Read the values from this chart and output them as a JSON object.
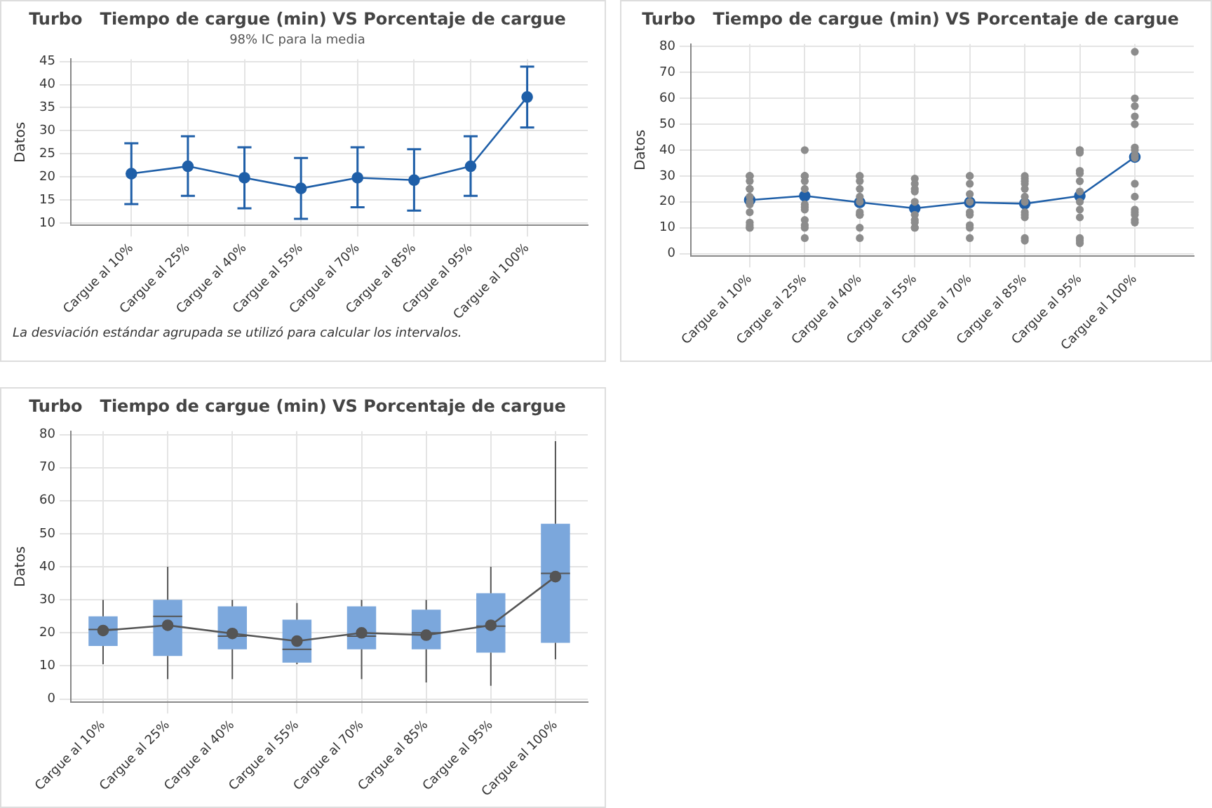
{
  "chart_data": [
    {
      "type": "line",
      "title": "Turbo   Tiempo de cargue (min) VS Porcentaje de cargue",
      "subtitle": "98% IC para la media",
      "ylabel": "Datos",
      "categories": [
        "Cargue al 10%",
        "Cargue al 25%",
        "Cargue al 40%",
        "Cargue al 55%",
        "Cargue al 70%",
        "Cargue al 85%",
        "Cargue al 95%",
        "Cargue al 100%"
      ],
      "color": "#1f5fa8",
      "marker": "circle",
      "values": [
        20.7,
        22.3,
        19.8,
        17.5,
        19.8,
        19.3,
        22.3,
        37.3
      ],
      "errors": [
        [
          14.1,
          27.3
        ],
        [
          15.9,
          28.8
        ],
        [
          13.2,
          26.4
        ],
        [
          10.9,
          24.1
        ],
        [
          13.4,
          26.4
        ],
        [
          12.7,
          26.0
        ],
        [
          15.9,
          28.8
        ],
        [
          30.7,
          43.9
        ]
      ],
      "ylim": [
        9.5,
        45.5
      ],
      "yticks": [
        10,
        15,
        20,
        25,
        30,
        35,
        40,
        45
      ],
      "grid": true,
      "annotations": [
        "La desviación estándar agrupada se utilizó para calcular los intervalos."
      ]
    },
    {
      "type": "scatter",
      "title": "Turbo   Tiempo de cargue (min) VS Porcentaje de cargue",
      "ylabel": "Datos",
      "categories": [
        "Cargue al 10%",
        "Cargue al 25%",
        "Cargue al 40%",
        "Cargue al 55%",
        "Cargue al 70%",
        "Cargue al 85%",
        "Cargue al 95%",
        "Cargue al 100%"
      ],
      "series": [
        {
          "type": "scatter",
          "color": "#8c8c8c",
          "marker": "circle",
          "x": [
            "Cargue al 10%",
            "Cargue al 10%",
            "Cargue al 10%",
            "Cargue al 10%",
            "Cargue al 10%",
            "Cargue al 10%",
            "Cargue al 10%",
            "Cargue al 10%",
            "Cargue al 10%",
            "Cargue al 10%",
            "Cargue al 10%",
            "Cargue al 10%",
            "Cargue al 10%",
            "Cargue al 10%",
            "Cargue al 25%",
            "Cargue al 25%",
            "Cargue al 25%",
            "Cargue al 25%",
            "Cargue al 25%",
            "Cargue al 25%",
            "Cargue al 25%",
            "Cargue al 25%",
            "Cargue al 25%",
            "Cargue al 25%",
            "Cargue al 25%",
            "Cargue al 25%",
            "Cargue al 25%",
            "Cargue al 40%",
            "Cargue al 40%",
            "Cargue al 40%",
            "Cargue al 40%",
            "Cargue al 40%",
            "Cargue al 40%",
            "Cargue al 40%",
            "Cargue al 40%",
            "Cargue al 40%",
            "Cargue al 40%",
            "Cargue al 40%",
            "Cargue al 55%",
            "Cargue al 55%",
            "Cargue al 55%",
            "Cargue al 55%",
            "Cargue al 55%",
            "Cargue al 55%",
            "Cargue al 55%",
            "Cargue al 55%",
            "Cargue al 55%",
            "Cargue al 55%",
            "Cargue al 70%",
            "Cargue al 70%",
            "Cargue al 70%",
            "Cargue al 70%",
            "Cargue al 70%",
            "Cargue al 70%",
            "Cargue al 70%",
            "Cargue al 70%",
            "Cargue al 70%",
            "Cargue al 70%",
            "Cargue al 85%",
            "Cargue al 85%",
            "Cargue al 85%",
            "Cargue al 85%",
            "Cargue al 85%",
            "Cargue al 85%",
            "Cargue al 85%",
            "Cargue al 85%",
            "Cargue al 85%",
            "Cargue al 85%",
            "Cargue al 85%",
            "Cargue al 85%",
            "Cargue al 95%",
            "Cargue al 95%",
            "Cargue al 95%",
            "Cargue al 95%",
            "Cargue al 95%",
            "Cargue al 95%",
            "Cargue al 95%",
            "Cargue al 95%",
            "Cargue al 95%",
            "Cargue al 95%",
            "Cargue al 95%",
            "Cargue al 95%",
            "Cargue al 95%",
            "Cargue al 100%",
            "Cargue al 100%",
            "Cargue al 100%",
            "Cargue al 100%",
            "Cargue al 100%",
            "Cargue al 100%",
            "Cargue al 100%",
            "Cargue al 100%",
            "Cargue al 100%",
            "Cargue al 100%",
            "Cargue al 100%",
            "Cargue al 100%",
            "Cargue al 100%",
            "Cargue al 100%",
            "Cargue al 100%",
            "Cargue al 100%"
          ],
          "values": [
            30,
            30,
            30,
            28,
            25,
            25,
            22,
            20,
            19,
            16,
            12,
            11,
            10,
            10,
            40,
            30,
            30,
            30,
            28,
            25,
            19,
            18,
            17,
            13,
            11,
            10,
            6,
            30,
            30,
            28,
            25,
            22,
            20,
            16,
            15,
            15,
            10,
            6,
            29,
            27,
            25,
            24,
            20,
            15,
            13,
            12,
            10,
            10,
            30,
            30,
            27,
            23,
            20,
            16,
            15,
            11,
            10,
            6,
            30,
            29,
            28,
            27,
            25,
            22,
            20,
            16,
            15,
            14,
            6,
            5,
            40,
            40,
            39,
            32,
            31,
            28,
            24,
            20,
            17,
            14,
            6,
            5,
            4,
            78,
            60,
            57,
            53,
            50,
            41,
            40,
            38,
            37,
            27,
            22,
            17,
            16,
            15,
            13,
            12
          ]
        },
        {
          "type": "line",
          "color": "#1f5fa8",
          "marker": "circle",
          "values": [
            20.7,
            22.3,
            19.8,
            17.5,
            19.8,
            19.3,
            22.3,
            37.3
          ]
        }
      ],
      "ylim": [
        -1,
        81
      ],
      "yticks": [
        0,
        10,
        20,
        30,
        40,
        50,
        60,
        70,
        80
      ],
      "grid": true
    },
    {
      "type": "box",
      "title": "Turbo   Tiempo de cargue (min) VS Porcentaje de cargue",
      "ylabel": "Datos",
      "categories": [
        "Cargue al 10%",
        "Cargue al 25%",
        "Cargue al 40%",
        "Cargue al 55%",
        "Cargue al 70%",
        "Cargue al 85%",
        "Cargue al 95%",
        "Cargue al 100%"
      ],
      "series": [
        {
          "type": "box",
          "color": "#7ba7dc",
          "boxes": [
            {
              "low": 10.5,
              "q1": 16,
              "median": 21,
              "q3": 25,
              "high": 30
            },
            {
              "low": 6,
              "q1": 13,
              "median": 25,
              "q3": 30,
              "high": 40
            },
            {
              "low": 6,
              "q1": 15,
              "median": 19,
              "q3": 28,
              "high": 30
            },
            {
              "low": 10.5,
              "q1": 11,
              "median": 15,
              "q3": 24,
              "high": 29
            },
            {
              "low": 6,
              "q1": 15,
              "median": 19,
              "q3": 28,
              "high": 30
            },
            {
              "low": 5,
              "q1": 15,
              "median": 20,
              "q3": 27,
              "high": 30
            },
            {
              "low": 4,
              "q1": 14,
              "median": 22,
              "q3": 32,
              "high": 40
            },
            {
              "low": 12,
              "q1": 17,
              "median": 38,
              "q3": 53,
              "high": 78
            }
          ]
        },
        {
          "type": "line",
          "color": "#555555",
          "marker": "circle",
          "values": [
            20.7,
            22.3,
            19.8,
            17.5,
            20,
            19.3,
            22.3,
            37
          ]
        }
      ],
      "ylim": [
        -1,
        81
      ],
      "yticks": [
        0,
        10,
        20,
        30,
        40,
        50,
        60,
        70,
        80
      ],
      "grid": true
    }
  ]
}
